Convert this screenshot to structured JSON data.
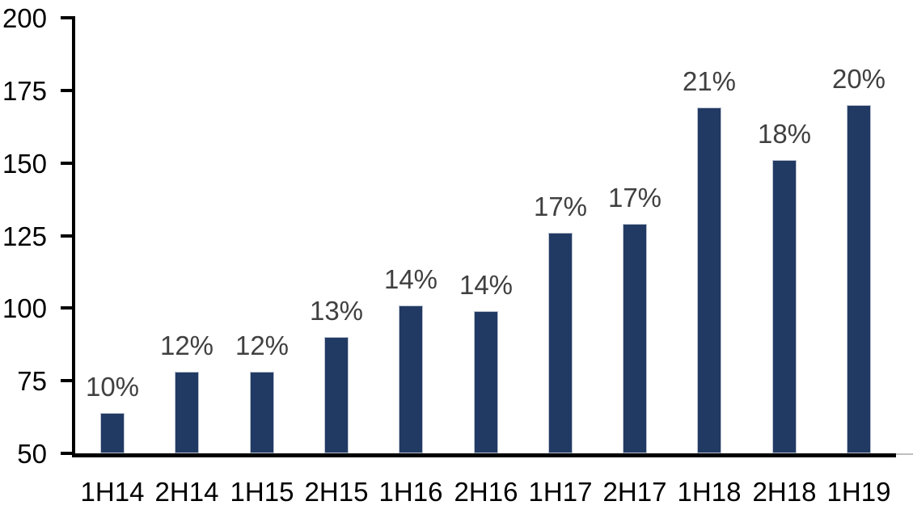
{
  "chart_data": {
    "type": "bar",
    "title": "",
    "xlabel": "",
    "ylabel": "",
    "categories": [
      "1H14",
      "2H14",
      "1H15",
      "2H15",
      "1H16",
      "2H16",
      "1H17",
      "2H17",
      "1H18",
      "2H18",
      "1H19"
    ],
    "values": [
      64,
      78,
      78,
      90,
      101,
      99,
      126,
      129,
      169,
      151,
      170
    ],
    "bar_labels": [
      "10%",
      "12%",
      "12%",
      "13%",
      "14%",
      "14%",
      "17%",
      "17%",
      "21%",
      "18%",
      "20%"
    ],
    "ylim": [
      50,
      200
    ],
    "yticks": [
      50,
      75,
      100,
      125,
      150,
      175,
      200
    ],
    "grid": false,
    "legend": "none",
    "colors": {
      "bar_fill": "#213A63",
      "bar_edge": "#bcc3d1",
      "data_label": "#404040",
      "axis": "#000000",
      "tick_label": "#000000",
      "background": "#ffffff"
    }
  }
}
